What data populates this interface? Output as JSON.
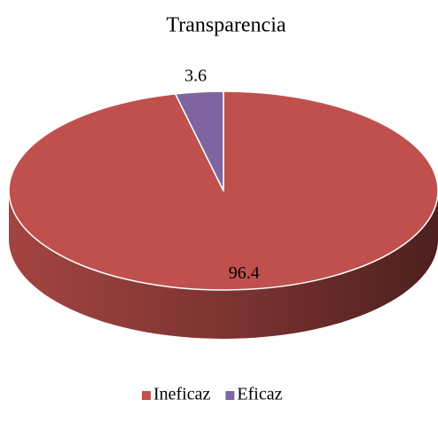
{
  "chart_data": {
    "type": "pie",
    "title": "Transparencia",
    "categories": [
      "Ineficaz",
      "Eficaz"
    ],
    "values": [
      96.4,
      3.6
    ],
    "colors": [
      "#c0504d",
      "#8064a2"
    ],
    "legend": "bottom"
  }
}
